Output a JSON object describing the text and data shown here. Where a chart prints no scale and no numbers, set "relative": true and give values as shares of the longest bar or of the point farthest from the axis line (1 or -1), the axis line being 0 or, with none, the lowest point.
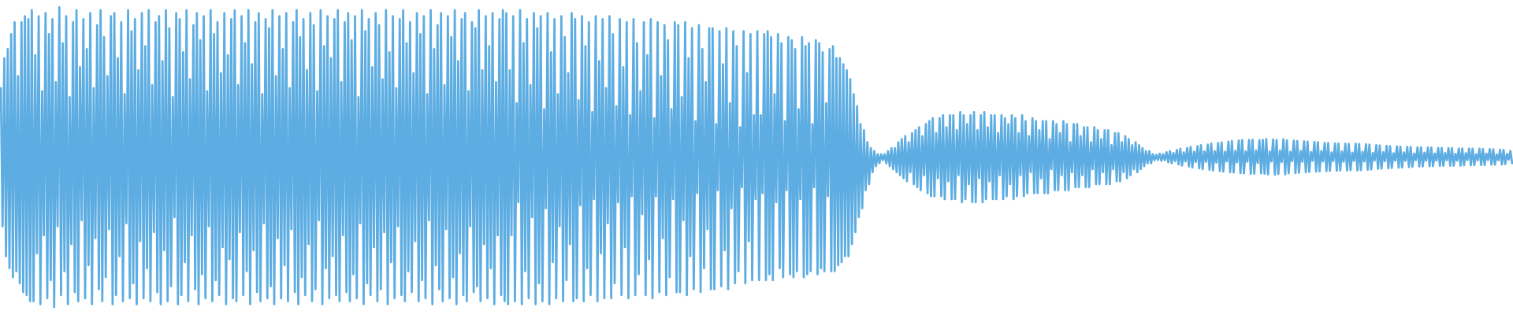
{
  "chart_data": {
    "type": "line",
    "relative": true,
    "color": "#5dade2",
    "categories": [
      null,
      null,
      null,
      null,
      null,
      null,
      null,
      null,
      null,
      null,
      null,
      null,
      null,
      null,
      null,
      null,
      null,
      null,
      null,
      null,
      null,
      null,
      null,
      null,
      null,
      null,
      null,
      null,
      null,
      null,
      null,
      null,
      null,
      null,
      null,
      null,
      null,
      null,
      null,
      null,
      null,
      null,
      null,
      null,
      null,
      null,
      null,
      null,
      null,
      null,
      null,
      null,
      null,
      null,
      null,
      null,
      null,
      null,
      null,
      null,
      null,
      null,
      null,
      null,
      null,
      null,
      null,
      null,
      null,
      null,
      null,
      null,
      null,
      null,
      null,
      null,
      null,
      null,
      null,
      null,
      null,
      null,
      null,
      null,
      null,
      null,
      null,
      null,
      null,
      null,
      null,
      null,
      null,
      null,
      null,
      null,
      null,
      null,
      null,
      null,
      null,
      null,
      null,
      null,
      null,
      null,
      null,
      null,
      null,
      null,
      null,
      null,
      null,
      null,
      null,
      null,
      null,
      null,
      null,
      null,
      null,
      null,
      null,
      null,
      null,
      null,
      null,
      null,
      null,
      null,
      null,
      null,
      null,
      null,
      null,
      null,
      null,
      null,
      null,
      null,
      null,
      null,
      null,
      null,
      null,
      null,
      null,
      null,
      null,
      null,
      null,
      null,
      null,
      null,
      null,
      null,
      null,
      null,
      null,
      null,
      null,
      null,
      null,
      null,
      null,
      null,
      null,
      null,
      null,
      null,
      null,
      null,
      null,
      null,
      null,
      null,
      null,
      null,
      null,
      null,
      null,
      null,
      null,
      null,
      null,
      null,
      null,
      null,
      null,
      null,
      null,
      null,
      null,
      null,
      null,
      null,
      null,
      null,
      null,
      null,
      null,
      null,
      null,
      null,
      null,
      null,
      null,
      null,
      null,
      null,
      null,
      null,
      null,
      null,
      null,
      null,
      null,
      null,
      null,
      null,
      null,
      null,
      null,
      null,
      null,
      null,
      null,
      null,
      null,
      null,
      null,
      null,
      null,
      null,
      null,
      null,
      null,
      null,
      null,
      null,
      null,
      null,
      null,
      null,
      null,
      null,
      null,
      null,
      null,
      null,
      null,
      null,
      null,
      null,
      null,
      null,
      null,
      null,
      null,
      null,
      null,
      null,
      null,
      null,
      null,
      null,
      null,
      null,
      null,
      null,
      null,
      null,
      null,
      null,
      null,
      null,
      null,
      null,
      null,
      null,
      null,
      null,
      null,
      null,
      null,
      null,
      null,
      null,
      null,
      null,
      null,
      null,
      null,
      null,
      null,
      null,
      null,
      null,
      null,
      null,
      null,
      null,
      null,
      null,
      null,
      null,
      null,
      null,
      null,
      null,
      null,
      null,
      null,
      null,
      null,
      null,
      null,
      null,
      null,
      null,
      null,
      null,
      null,
      null,
      null,
      null,
      null,
      null,
      null,
      null,
      null,
      null,
      null,
      null,
      null,
      null,
      null,
      null,
      null,
      null,
      null,
      null,
      null,
      null,
      null,
      null,
      null,
      null,
      null,
      null,
      null,
      null,
      null,
      null,
      null,
      null,
      null,
      null,
      null,
      null,
      null,
      null,
      null,
      null,
      null,
      null,
      null,
      null,
      null,
      null,
      null,
      null,
      null,
      null,
      null,
      null,
      null,
      null,
      null,
      null,
      null,
      null,
      null,
      null,
      null,
      null,
      null,
      null,
      null,
      null,
      null,
      null,
      null,
      null,
      null,
      null,
      null,
      null,
      null,
      null,
      null,
      null,
      null,
      null,
      null,
      null,
      null,
      null,
      null,
      null,
      null,
      null,
      null,
      null,
      null,
      null,
      null,
      null,
      null,
      null,
      null,
      null,
      null,
      null,
      null,
      null,
      null,
      null,
      null,
      null,
      null,
      null,
      null,
      null,
      null,
      null,
      null,
      null,
      null,
      null,
      null,
      null,
      null,
      null,
      null,
      null,
      null,
      null,
      null,
      null,
      null,
      null,
      null,
      null,
      null,
      null,
      null,
      null,
      null,
      null,
      null,
      null,
      null,
      null,
      null,
      null,
      null,
      null,
      null,
      null,
      null,
      null,
      null,
      null,
      null,
      null,
      null,
      null,
      null,
      null,
      null,
      null,
      null,
      null,
      null,
      null,
      null,
      null,
      null,
      null,
      null,
      null,
      null,
      null,
      null,
      null,
      null,
      null,
      null,
      null,
      null,
      null,
      null,
      null,
      null,
      null,
      null,
      null,
      null,
      null,
      null,
      null,
      null,
      null,
      null,
      null,
      null,
      null,
      null,
      null,
      null,
      null,
      null,
      null,
      null,
      null,
      null,
      null,
      null,
      null,
      null,
      null,
      null,
      null,
      null,
      null,
      null,
      null,
      null,
      null,
      null,
      null,
      null,
      null,
      null,
      null,
      null,
      null,
      null,
      null,
      null,
      null,
      null,
      null,
      null,
      null,
      null,
      null,
      null,
      null,
      null,
      null,
      null,
      null,
      null,
      null,
      null,
      null,
      null,
      null,
      null,
      null,
      null,
      null,
      null,
      null,
      null,
      null,
      null,
      null,
      null,
      null,
      null,
      null,
      null,
      null,
      null,
      null,
      null,
      null,
      null,
      null,
      null,
      null,
      null,
      null,
      null,
      null,
      null,
      null,
      null,
      null,
      null,
      null,
      null,
      null,
      null,
      null,
      null,
      null,
      null,
      null,
      null,
      null,
      null,
      null,
      null,
      null,
      null,
      null,
      null,
      null,
      null,
      null,
      null,
      null,
      null,
      null,
      null,
      null,
      null,
      null,
      null,
      null,
      null,
      null,
      null,
      null,
      null,
      null,
      null,
      null,
      null,
      null,
      null,
      null,
      null,
      null,
      null,
      null,
      null,
      null,
      null,
      null,
      null,
      null,
      null,
      null,
      null,
      null,
      null,
      null,
      null,
      null,
      null,
      null,
      null,
      null,
      null,
      null,
      null,
      null,
      null,
      null,
      null,
      null,
      null,
      null,
      null,
      null,
      null,
      null,
      null,
      null,
      null,
      null,
      null,
      null,
      null,
      null,
      null,
      null,
      null,
      null,
      null,
      null,
      null,
      null,
      null,
      null,
      null,
      null,
      null,
      null,
      null,
      null,
      null,
      null,
      null,
      null,
      null,
      null,
      null,
      null,
      null,
      null,
      null,
      null,
      null,
      null,
      null,
      null,
      null,
      null,
      null,
      null,
      null,
      null,
      null,
      null,
      null,
      null,
      null,
      null,
      null,
      null,
      null,
      null,
      null,
      null,
      null,
      null,
      null,
      null,
      null,
      null,
      null,
      null,
      null,
      null,
      null,
      null,
      null,
      null,
      null,
      null,
      null,
      null,
      null,
      null,
      null,
      null,
      null,
      null,
      null,
      null,
      null,
      null,
      null,
      null,
      null,
      null,
      null,
      null,
      null,
      null,
      null,
      null,
      null,
      null,
      null,
      null,
      null,
      null,
      null,
      null,
      null,
      null,
      null,
      null,
      null,
      null,
      null,
      null,
      null,
      null,
      null,
      null,
      null,
      null,
      null,
      null,
      null,
      null,
      null,
      null,
      null,
      null,
      null,
      null,
      null,
      null,
      null,
      null,
      null,
      null,
      null,
      null,
      null,
      null,
      null,
      null,
      null,
      null,
      null,
      null,
      null,
      null,
      null,
      null,
      null,
      null,
      null,
      null,
      null,
      null,
      null,
      null,
      null,
      null,
      null,
      null,
      null,
      null,
      null,
      null,
      null,
      null,
      null,
      null,
      null,
      null,
      null,
      null,
      null,
      null,
      null,
      null,
      null,
      null,
      null,
      null,
      null,
      null,
      null,
      null,
      null,
      null,
      null,
      null,
      null,
      null,
      null,
      null,
      null,
      null,
      null,
      null,
      null,
      null
    ],
    "values": [
      0.73,
      0.27,
      0.83,
      0.17,
      0.86,
      0.13,
      0.91,
      0.1,
      0.95,
      0.12,
      0.77,
      0.08,
      0.95,
      0.05,
      0.97,
      0.04,
      0.96,
      0.02,
      0.99,
      0.02,
      0.84,
      0.18,
      0.97,
      0.01,
      0.72,
      0.24,
      0.98,
      0.03,
      0.91,
      0.09,
      0.96,
      0.0,
      0.75,
      0.27,
      1.0,
      0.04,
      0.88,
      0.12,
      0.97,
      0.01,
      0.7,
      0.21,
      0.95,
      0.05,
      0.99,
      0.02,
      0.8,
      0.29,
      0.96,
      0.03,
      0.86,
      0.14,
      0.98,
      0.01,
      0.73,
      0.23,
      0.94,
      0.06,
      0.99,
      0.02,
      0.9,
      0.1,
      0.77,
      0.26,
      0.97,
      0.01,
      0.98,
      0.04,
      0.83,
      0.17,
      0.95,
      0.02,
      0.71,
      0.28,
      0.99,
      0.03,
      0.92,
      0.08,
      0.96,
      0.01,
      0.79,
      0.22,
      0.98,
      0.03,
      0.87,
      0.13,
      0.99,
      0.02,
      0.74,
      0.25,
      0.95,
      0.05,
      0.97,
      0.01,
      0.82,
      0.19,
      0.99,
      0.02,
      0.93,
      0.07,
      0.7,
      0.3,
      0.98,
      0.01,
      0.96,
      0.04,
      0.85,
      0.15,
      0.99,
      0.02,
      0.76,
      0.24,
      0.94,
      0.06,
      0.98,
      0.01,
      0.89,
      0.11,
      0.97,
      0.03,
      0.72,
      0.27,
      0.99,
      0.02,
      0.91,
      0.09,
      0.95,
      0.04,
      0.78,
      0.2,
      0.98,
      0.01,
      0.84,
      0.16,
      0.96,
      0.03,
      0.99,
      0.02,
      0.74,
      0.25,
      0.97,
      0.04,
      0.88,
      0.12,
      0.99,
      0.01,
      0.81,
      0.19,
      0.95,
      0.05,
      0.98,
      0.02,
      0.71,
      0.28,
      0.96,
      0.03,
      0.93,
      0.07,
      0.99,
      0.01,
      0.77,
      0.23,
      0.97,
      0.03,
      0.86,
      0.14,
      0.98,
      0.02,
      0.73,
      0.26,
      0.95,
      0.05,
      0.99,
      0.01,
      0.9,
      0.1,
      0.96,
      0.04,
      0.79,
      0.21,
      0.98,
      0.02,
      0.94,
      0.06,
      0.72,
      0.29,
      0.99,
      0.01,
      0.87,
      0.13,
      0.97,
      0.03,
      0.83,
      0.17,
      0.96,
      0.04,
      0.99,
      0.02,
      0.75,
      0.24,
      0.95,
      0.05,
      0.98,
      0.02,
      0.89,
      0.11,
      0.97,
      0.03,
      0.7,
      0.28,
      0.99,
      0.01,
      0.92,
      0.08,
      0.96,
      0.04,
      0.8,
      0.2,
      0.98,
      0.02,
      0.94,
      0.06,
      0.76,
      0.25,
      0.99,
      0.01,
      0.85,
      0.15,
      0.97,
      0.03,
      0.73,
      0.27,
      0.96,
      0.04,
      0.99,
      0.02,
      0.88,
      0.12,
      0.95,
      0.05,
      0.78,
      0.22,
      0.98,
      0.02,
      0.91,
      0.09,
      0.97,
      0.03,
      0.71,
      0.29,
      0.99,
      0.01,
      0.86,
      0.14,
      0.94,
      0.06,
      0.98,
      0.02,
      0.74,
      0.26,
      0.97,
      0.03,
      0.9,
      0.1,
      0.99,
      0.01,
      0.82,
      0.18,
      0.96,
      0.04,
      0.98,
      0.02,
      0.72,
      0.27,
      0.95,
      0.05,
      0.93,
      0.07,
      0.99,
      0.02,
      0.79,
      0.21,
      0.97,
      0.03,
      0.87,
      0.13,
      0.98,
      0.01,
      0.75,
      0.24,
      0.96,
      0.04,
      0.99,
      0.02,
      0.98,
      0.01,
      0.79,
      0.24,
      0.97,
      0.02,
      0.68,
      0.35,
      0.99,
      0.01,
      0.88,
      0.12,
      0.96,
      0.03,
      0.74,
      0.3,
      0.98,
      0.01,
      0.93,
      0.08,
      0.97,
      0.02,
      0.66,
      0.33,
      0.98,
      0.01,
      0.85,
      0.15,
      0.96,
      0.03,
      0.71,
      0.27,
      0.97,
      0.02,
      0.9,
      0.09,
      0.78,
      0.21,
      0.98,
      0.02,
      0.96,
      0.03,
      0.69,
      0.34,
      0.97,
      0.02,
      0.87,
      0.13,
      0.95,
      0.04,
      0.65,
      0.36,
      0.97,
      0.02,
      0.82,
      0.18,
      0.96,
      0.03,
      0.73,
      0.28,
      0.97,
      0.03,
      0.91,
      0.08,
      0.67,
      0.35,
      0.96,
      0.04,
      0.8,
      0.2,
      0.95,
      0.03,
      0.64,
      0.37,
      0.96,
      0.04,
      0.88,
      0.11,
      0.72,
      0.31,
      0.95,
      0.04,
      0.84,
      0.16,
      0.96,
      0.03,
      0.63,
      0.37,
      0.95,
      0.05,
      0.77,
      0.23,
      0.94,
      0.04,
      0.89,
      0.1,
      0.66,
      0.36,
      0.95,
      0.05,
      0.94,
      0.05,
      0.7,
      0.29,
      0.95,
      0.04,
      0.83,
      0.17,
      0.93,
      0.06,
      0.62,
      0.38,
      0.94,
      0.05,
      0.86,
      0.13,
      0.75,
      0.26,
      0.93,
      0.06,
      0.93,
      0.06,
      0.61,
      0.39,
      0.92,
      0.07,
      0.81,
      0.19,
      0.93,
      0.06,
      0.68,
      0.33,
      0.92,
      0.08,
      0.87,
      0.12,
      0.6,
      0.4,
      0.92,
      0.08,
      0.78,
      0.22,
      0.91,
      0.09,
      0.64,
      0.36,
      0.92,
      0.09,
      0.64,
      0.38,
      0.91,
      0.09,
      0.92,
      0.11,
      0.9,
      0.09,
      0.71,
      0.35,
      0.91,
      0.13,
      0.88,
      0.1,
      0.62,
      0.39,
      0.9,
      0.11,
      0.89,
      0.1,
      0.86,
      0.12,
      0.66,
      0.36,
      0.9,
      0.1,
      0.87,
      0.11,
      0.88,
      0.12,
      0.61,
      0.4,
      0.89,
      0.11,
      0.88,
      0.13,
      0.85,
      0.12,
      0.68,
      0.37,
      0.86,
      0.12,
      0.87,
      0.12,
      0.83,
      0.14,
      0.83,
      0.15,
      0.81,
      0.17,
      0.79,
      0.17,
      0.76,
      0.21,
      0.71,
      0.25,
      0.67,
      0.3,
      0.61,
      0.33,
      0.59,
      0.39,
      0.55,
      0.41,
      0.53,
      0.45,
      0.52,
      0.47,
      0.51,
      0.48,
      0.51,
      0.49,
      0.51,
      0.48,
      0.52,
      0.47,
      0.53,
      0.46,
      0.53,
      0.45,
      0.55,
      0.44,
      0.56,
      0.43,
      0.57,
      0.42,
      0.55,
      0.45,
      0.58,
      0.41,
      0.59,
      0.4,
      0.6,
      0.39,
      0.57,
      0.44,
      0.61,
      0.38,
      0.62,
      0.37,
      0.63,
      0.37,
      0.58,
      0.43,
      0.63,
      0.37,
      0.64,
      0.36,
      0.6,
      0.42,
      0.64,
      0.36,
      0.64,
      0.36,
      0.59,
      0.44,
      0.65,
      0.35,
      0.64,
      0.36,
      0.61,
      0.41,
      0.64,
      0.35,
      0.65,
      0.35,
      0.59,
      0.43,
      0.64,
      0.35,
      0.65,
      0.36,
      0.6,
      0.42,
      0.64,
      0.36,
      0.64,
      0.36,
      0.58,
      0.44,
      0.64,
      0.36,
      0.63,
      0.37,
      0.61,
      0.41,
      0.64,
      0.36,
      0.63,
      0.37,
      0.58,
      0.44,
      0.64,
      0.37,
      0.62,
      0.38,
      0.57,
      0.45,
      0.63,
      0.38,
      0.62,
      0.38,
      0.59,
      0.43,
      0.62,
      0.38,
      0.62,
      0.38,
      0.56,
      0.46,
      0.62,
      0.39,
      0.61,
      0.39,
      0.58,
      0.44,
      0.62,
      0.39,
      0.61,
      0.39,
      0.55,
      0.45,
      0.61,
      0.4,
      0.61,
      0.4,
      0.57,
      0.44,
      0.6,
      0.4,
      0.6,
      0.4,
      0.55,
      0.46,
      0.6,
      0.41,
      0.59,
      0.41,
      0.56,
      0.45,
      0.59,
      0.41,
      0.59,
      0.41,
      0.54,
      0.46,
      0.58,
      0.42,
      0.58,
      0.42,
      0.55,
      0.45,
      0.57,
      0.43,
      0.56,
      0.44,
      0.54,
      0.46,
      0.55,
      0.45,
      0.54,
      0.46,
      0.53,
      0.47,
      0.52,
      0.48,
      0.52,
      0.48,
      0.51,
      0.49,
      0.508,
      0.491,
      0.512,
      0.488,
      0.51,
      0.49,
      0.517,
      0.483,
      0.52,
      0.48,
      0.514,
      0.487,
      0.524,
      0.476,
      0.528,
      0.472,
      0.516,
      0.486,
      0.531,
      0.469,
      0.534,
      0.466,
      0.518,
      0.484,
      0.537,
      0.463,
      0.54,
      0.46,
      0.519,
      0.485,
      0.542,
      0.458,
      0.545,
      0.456,
      0.52,
      0.482,
      0.547,
      0.454,
      0.549,
      0.452,
      0.518,
      0.486,
      0.552,
      0.45,
      0.554,
      0.449,
      0.521,
      0.483,
      0.556,
      0.447,
      0.557,
      0.446,
      0.519,
      0.485,
      0.558,
      0.445,
      0.558,
      0.445,
      0.522,
      0.481,
      0.557,
      0.446,
      0.558,
      0.445,
      0.56,
      0.443,
      0.519,
      0.486,
      0.559,
      0.442,
      0.557,
      0.444,
      0.522,
      0.484,
      0.56,
      0.443,
      0.556,
      0.446,
      0.518,
      0.487,
      0.555,
      0.447,
      0.554,
      0.448,
      0.521,
      0.485,
      0.553,
      0.45,
      0.552,
      0.451,
      0.517,
      0.488,
      0.551,
      0.452,
      0.55,
      0.453,
      0.52,
      0.486,
      0.548,
      0.454,
      0.547,
      0.455,
      0.516,
      0.487,
      0.546,
      0.455,
      0.545,
      0.456,
      0.519,
      0.485,
      0.545,
      0.456,
      0.544,
      0.457,
      0.515,
      0.488,
      0.545,
      0.456,
      0.544,
      0.457,
      0.518,
      0.486,
      0.543,
      0.458,
      0.542,
      0.459,
      0.514,
      0.489,
      0.54,
      0.461,
      0.539,
      0.462,
      0.517,
      0.487,
      0.538,
      0.463,
      0.537,
      0.464,
      0.513,
      0.489,
      0.536,
      0.465,
      0.535,
      0.466,
      0.516,
      0.488,
      0.534,
      0.467,
      0.534,
      0.468,
      0.512,
      0.49,
      0.533,
      0.469,
      0.533,
      0.469,
      0.515,
      0.488,
      0.532,
      0.47,
      0.532,
      0.47,
      0.512,
      0.489,
      0.531,
      0.471,
      0.531,
      0.471,
      0.514,
      0.49,
      0.53,
      0.472,
      0.53,
      0.472,
      0.511,
      0.489,
      0.529,
      0.472,
      0.529,
      0.473,
      0.513,
      0.491,
      0.529,
      0.473,
      0.528,
      0.473,
      0.51,
      0.49,
      0.528,
      0.474,
      0.527,
      0.474,
      0.512,
      0.491,
      0.527,
      0.475,
      0.526,
      0.475,
      0.509,
      0.49,
      0.525,
      0.476,
      0.524,
      0.477,
      0.511,
      0.492,
      0.521,
      0.48
    ]
  }
}
